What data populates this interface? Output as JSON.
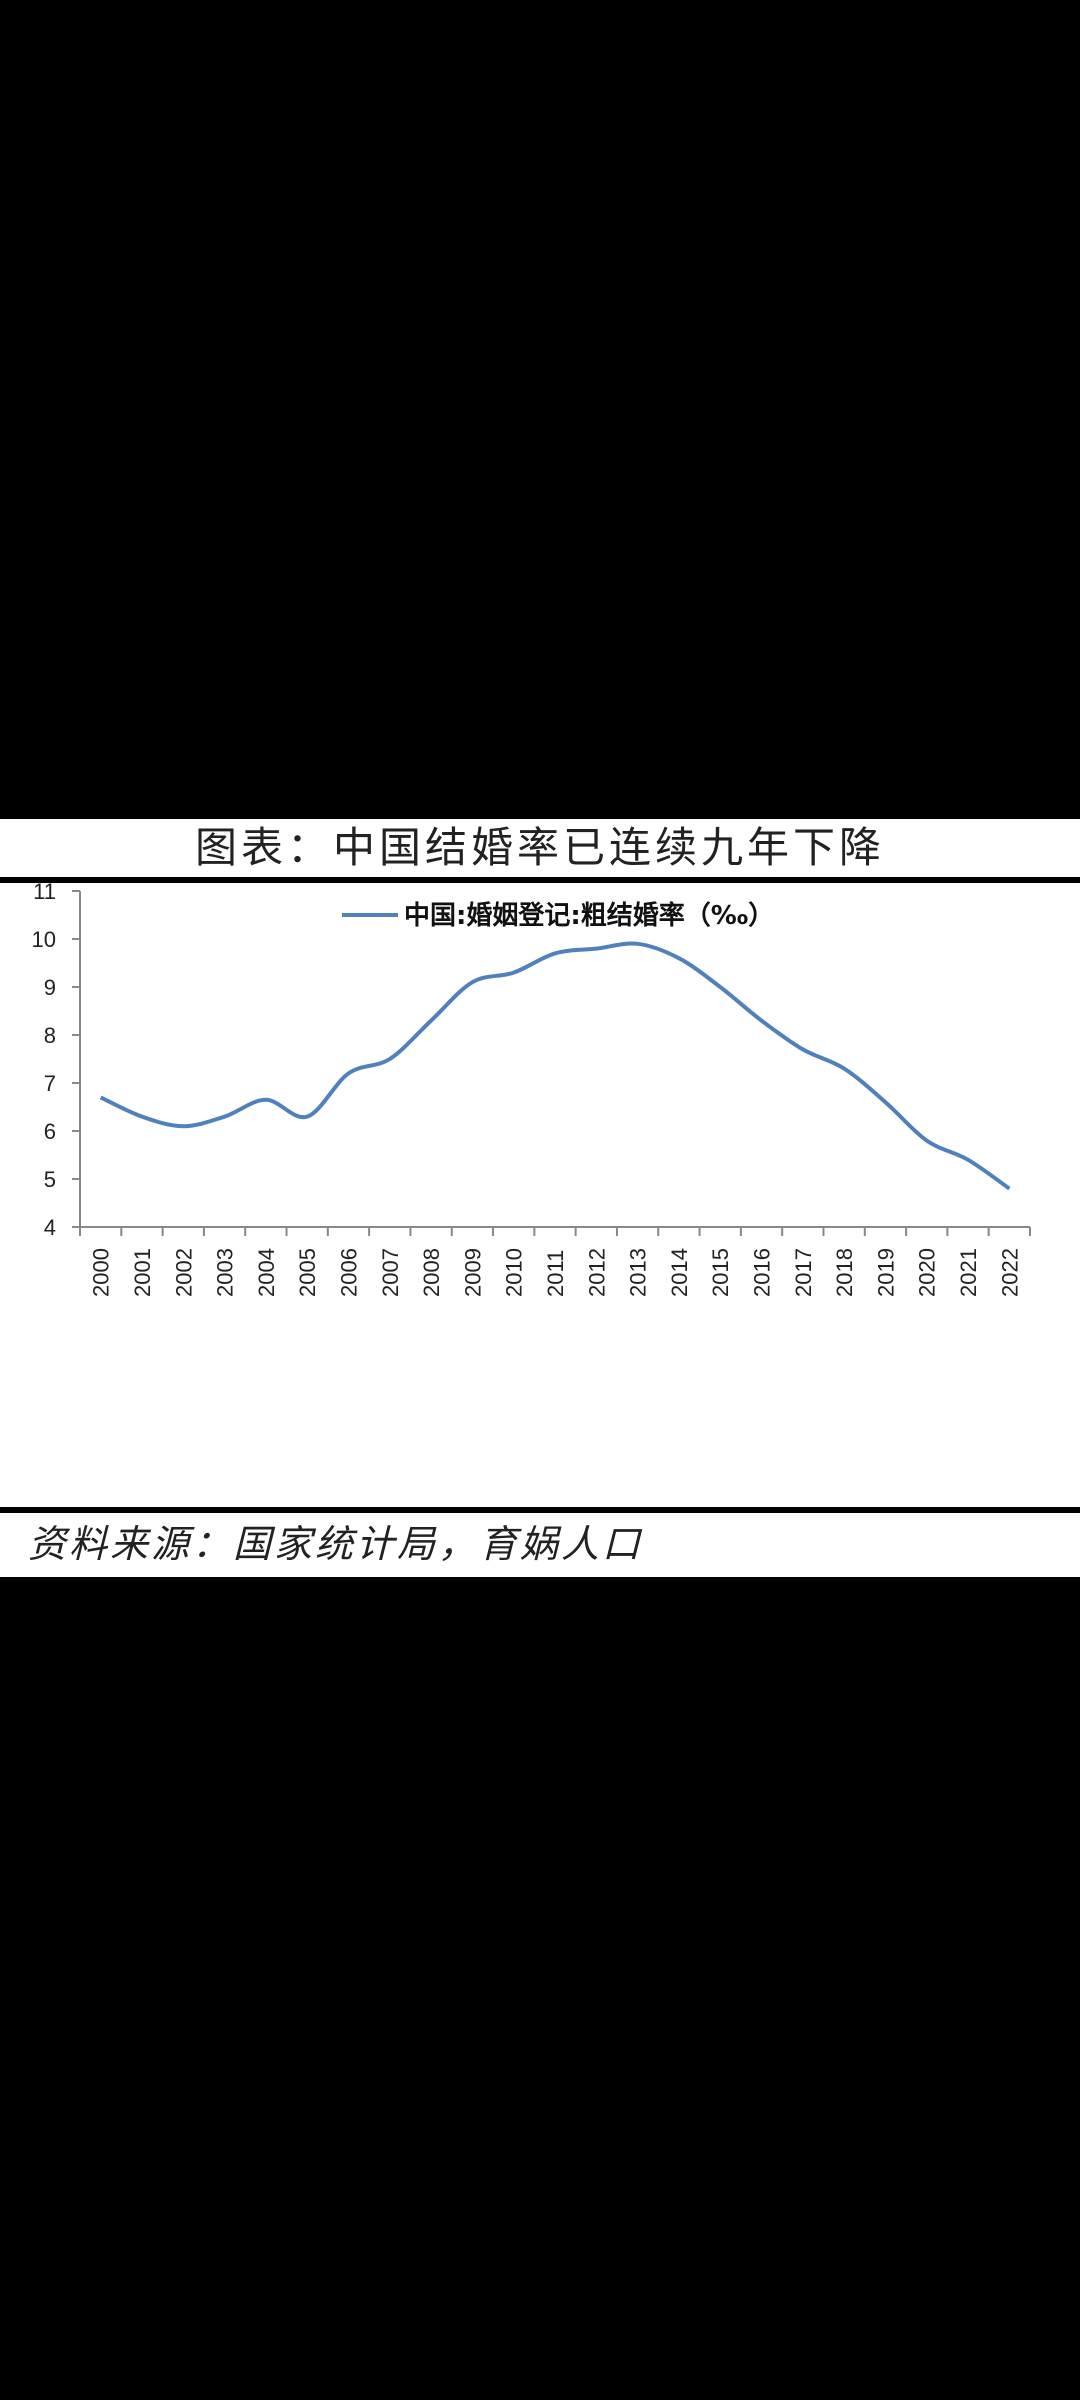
{
  "title": "图表：中国结婚率已连续九年下降",
  "source": "资料来源：国家统计局，育娲人口",
  "chart_data": {
    "type": "line",
    "legend": "中国:婚姻登记:粗结婚率（‰）",
    "legend_position": "top-center",
    "grid": false,
    "ylim": [
      4,
      11
    ],
    "yticks": [
      4,
      5,
      6,
      7,
      8,
      9,
      10,
      11
    ],
    "x": [
      "2000",
      "2001",
      "2002",
      "2003",
      "2004",
      "2005",
      "2006",
      "2007",
      "2008",
      "2009",
      "2010",
      "2011",
      "2012",
      "2013",
      "2014",
      "2015",
      "2016",
      "2017",
      "2018",
      "2019",
      "2020",
      "2021",
      "2022"
    ],
    "series": [
      {
        "name": "中国:婚姻登记:粗结婚率（‰）",
        "color": "#4f81bd",
        "values": [
          6.7,
          6.3,
          6.1,
          6.3,
          6.65,
          6.3,
          7.2,
          7.5,
          8.3,
          9.1,
          9.3,
          9.7,
          9.8,
          9.9,
          9.6,
          9.0,
          8.3,
          7.7,
          7.3,
          6.6,
          5.8,
          5.4,
          4.8
        ]
      }
    ]
  }
}
